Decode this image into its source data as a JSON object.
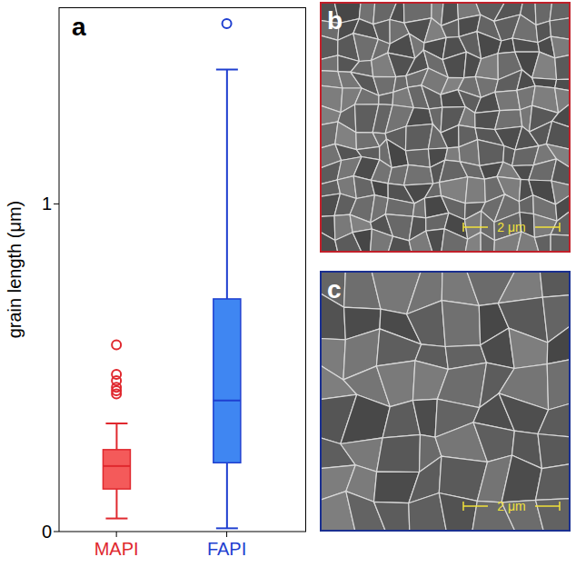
{
  "chart_data": {
    "type": "box",
    "categories": [
      "MAPI",
      "FAPI"
    ],
    "y_label": "grain length (μm)",
    "ylim": [
      0,
      1.6
    ],
    "yticks": [
      0,
      1
    ],
    "series": [
      {
        "name": "MAPI",
        "color": "#e0282e",
        "min": 0.04,
        "q1": 0.13,
        "median": 0.2,
        "q3": 0.25,
        "max": 0.33,
        "outliers": [
          0.42,
          0.43,
          0.44,
          0.46,
          0.48,
          0.57
        ]
      },
      {
        "name": "FAPI",
        "color": "#1f3fd0",
        "min": 0.01,
        "q1": 0.21,
        "median": 0.4,
        "q3": 0.71,
        "max": 1.41,
        "outliers": [
          1.55
        ]
      }
    ]
  },
  "panel_label": "a",
  "images": [
    {
      "label": "b",
      "scale_bar": "2 μm",
      "color": "#c0202a"
    },
    {
      "label": "c",
      "scale_bar": "2 μm",
      "color": "#1a2f90"
    }
  ]
}
